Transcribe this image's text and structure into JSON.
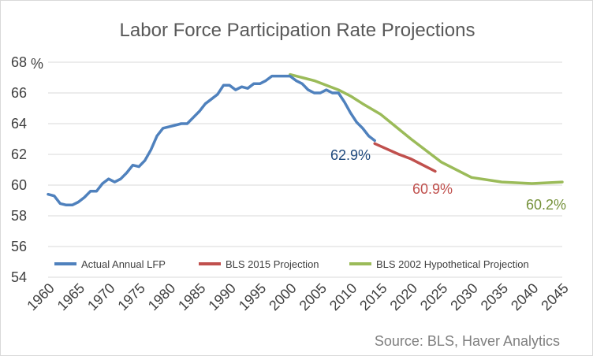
{
  "chart_data": {
    "type": "line",
    "title": "Labor Force Participation Rate Projections",
    "y_unit": "%",
    "ylim": [
      54,
      68
    ],
    "y_ticks": [
      "54",
      "56",
      "58",
      "60",
      "62",
      "64",
      "66",
      "68"
    ],
    "xlim": [
      1960,
      2045
    ],
    "x_ticks": [
      "1960",
      "1965",
      "1970",
      "1975",
      "1980",
      "1985",
      "1990",
      "1995",
      "2000",
      "2005",
      "2010",
      "2015",
      "2020",
      "2025",
      "2030",
      "2035",
      "2040",
      "2045"
    ],
    "grid": "horizontal",
    "legend_position": "bottom",
    "series": [
      {
        "name": "Actual Annual LFP",
        "color": "#4f81bd",
        "x": [
          1960,
          1961,
          1962,
          1963,
          1964,
          1965,
          1966,
          1967,
          1968,
          1969,
          1970,
          1971,
          1972,
          1973,
          1974,
          1975,
          1976,
          1977,
          1978,
          1979,
          1980,
          1981,
          1982,
          1983,
          1984,
          1985,
          1986,
          1987,
          1988,
          1989,
          1990,
          1991,
          1992,
          1993,
          1994,
          1995,
          1996,
          1997,
          1998,
          1999,
          2000,
          2001,
          2002,
          2003,
          2004,
          2005,
          2006,
          2007,
          2008,
          2009,
          2010,
          2011,
          2012,
          2013,
          2014
        ],
        "y": [
          59.4,
          59.3,
          58.8,
          58.7,
          58.7,
          58.9,
          59.2,
          59.6,
          59.6,
          60.1,
          60.4,
          60.2,
          60.4,
          60.8,
          61.3,
          61.2,
          61.6,
          62.3,
          63.2,
          63.7,
          63.8,
          63.9,
          64.0,
          64.0,
          64.4,
          64.8,
          65.3,
          65.6,
          65.9,
          66.5,
          66.5,
          66.2,
          66.4,
          66.3,
          66.6,
          66.6,
          66.8,
          67.1,
          67.1,
          67.1,
          67.1,
          66.8,
          66.6,
          66.2,
          66.0,
          66.0,
          66.2,
          66.0,
          66.0,
          65.4,
          64.7,
          64.1,
          63.7,
          63.2,
          62.9
        ]
      },
      {
        "name": "BLS 2015 Projection",
        "color": "#c0504d",
        "x": [
          2014,
          2016,
          2018,
          2020,
          2022,
          2024
        ],
        "y": [
          62.7,
          62.35,
          62.0,
          61.7,
          61.3,
          60.9
        ]
      },
      {
        "name": "BLS 2002 Hypothetical Projection",
        "color": "#9bbb59",
        "x": [
          2000,
          2002,
          2004,
          2006,
          2008,
          2010,
          2012,
          2015,
          2020,
          2025,
          2030,
          2035,
          2040,
          2045
        ],
        "y": [
          67.2,
          67.0,
          66.8,
          66.5,
          66.2,
          65.8,
          65.3,
          64.6,
          63.0,
          61.5,
          60.5,
          60.2,
          60.1,
          60.2
        ]
      }
    ],
    "annotations": [
      {
        "text": "62.9%",
        "color": "#1f497d"
      },
      {
        "text": "60.9%",
        "color": "#c0504d"
      },
      {
        "text": "60.2%",
        "color": "#76923c"
      }
    ],
    "source": "Source: BLS, Haver Analytics"
  }
}
